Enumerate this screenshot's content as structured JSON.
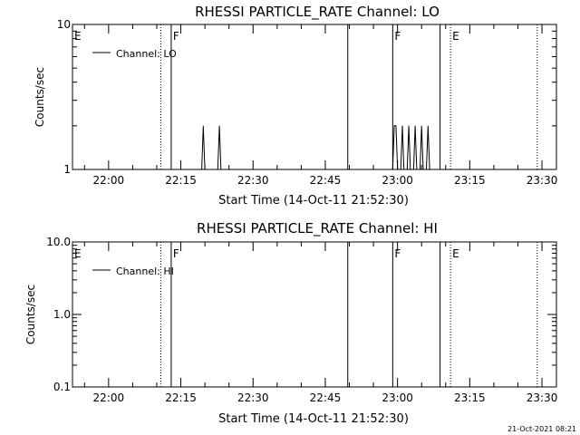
{
  "footer_timestamp": "21-Oct-2021 08:21",
  "chart_data": [
    {
      "type": "line",
      "title": "RHESSI PARTICLE_RATE Channel: LO",
      "xlabel": "Start Time (14-Oct-11 21:52:30)",
      "ylabel": "Counts/sec",
      "y_scale": "log",
      "ylim": [
        1,
        10
      ],
      "y_ticks": [
        {
          "value": 1,
          "label": "1"
        },
        {
          "value": 10,
          "label": "10"
        }
      ],
      "x_ticks": [
        "22:00",
        "22:15",
        "22:30",
        "22:45",
        "23:00",
        "23:15",
        "23:30"
      ],
      "legend": {
        "placement": "top-left",
        "entries": [
          "Channel: LO"
        ]
      },
      "series": [
        {
          "name": "Channel: LO",
          "points": [
            [
              "21:52:30",
              1
            ],
            [
              "22:19:20",
              1
            ],
            [
              "22:19:40",
              2
            ],
            [
              "22:20:00",
              1
            ],
            [
              "22:22:40",
              1
            ],
            [
              "22:23:00",
              2
            ],
            [
              "22:23:20",
              1
            ],
            [
              "22:59:00",
              1
            ],
            [
              "22:59:20",
              2
            ],
            [
              "22:59:40",
              2
            ],
            [
              "23:00:00",
              1
            ],
            [
              "23:00:40",
              1
            ],
            [
              "23:01:00",
              2
            ],
            [
              "23:01:20",
              1
            ],
            [
              "23:02:00",
              1
            ],
            [
              "23:02:20",
              2
            ],
            [
              "23:02:40",
              1
            ],
            [
              "23:03:20",
              1
            ],
            [
              "23:03:40",
              2
            ],
            [
              "23:04:00",
              1
            ],
            [
              "23:04:40",
              1
            ],
            [
              "23:05:00",
              2
            ],
            [
              "23:05:20",
              1
            ],
            [
              "23:06:00",
              1
            ],
            [
              "23:06:20",
              2
            ],
            [
              "23:06:40",
              1
            ],
            [
              "23:33:00",
              1
            ]
          ]
        }
      ],
      "event_markers": [
        {
          "time": "21:52:30",
          "label": "E",
          "style": "none"
        },
        {
          "time": "22:10:50",
          "label": "",
          "style": "dotted"
        },
        {
          "time": "22:13:00",
          "label": "F",
          "style": "solid"
        },
        {
          "time": "22:49:40",
          "label": "",
          "style": "solid"
        },
        {
          "time": "22:59:00",
          "label": "F",
          "style": "solid"
        },
        {
          "time": "23:08:50",
          "label": "",
          "style": "solid"
        },
        {
          "time": "23:11:00",
          "label": "E",
          "style": "dotted"
        },
        {
          "time": "23:29:00",
          "label": "",
          "style": "dotted"
        }
      ]
    },
    {
      "type": "line",
      "title": "RHESSI PARTICLE_RATE Channel: HI",
      "xlabel": "Start Time (14-Oct-11 21:52:30)",
      "ylabel": "Counts/sec",
      "y_scale": "log",
      "ylim": [
        0.1,
        10
      ],
      "y_ticks": [
        {
          "value": 0.1,
          "label": "0.1"
        },
        {
          "value": 1,
          "label": "1.0"
        },
        {
          "value": 10,
          "label": "10.0"
        }
      ],
      "x_ticks": [
        "22:00",
        "22:15",
        "22:30",
        "22:45",
        "23:00",
        "23:15",
        "23:30"
      ],
      "legend": {
        "placement": "top-left",
        "entries": [
          "Channel: HI"
        ]
      },
      "series": [
        {
          "name": "Channel: HI",
          "points": []
        }
      ],
      "event_markers": [
        {
          "time": "21:52:30",
          "label": "E",
          "style": "none"
        },
        {
          "time": "22:10:50",
          "label": "",
          "style": "dotted"
        },
        {
          "time": "22:13:00",
          "label": "F",
          "style": "solid"
        },
        {
          "time": "22:49:40",
          "label": "",
          "style": "solid"
        },
        {
          "time": "22:59:00",
          "label": "F",
          "style": "solid"
        },
        {
          "time": "23:08:50",
          "label": "",
          "style": "solid"
        },
        {
          "time": "23:11:00",
          "label": "E",
          "style": "dotted"
        },
        {
          "time": "23:29:00",
          "label": "",
          "style": "dotted"
        }
      ]
    }
  ]
}
